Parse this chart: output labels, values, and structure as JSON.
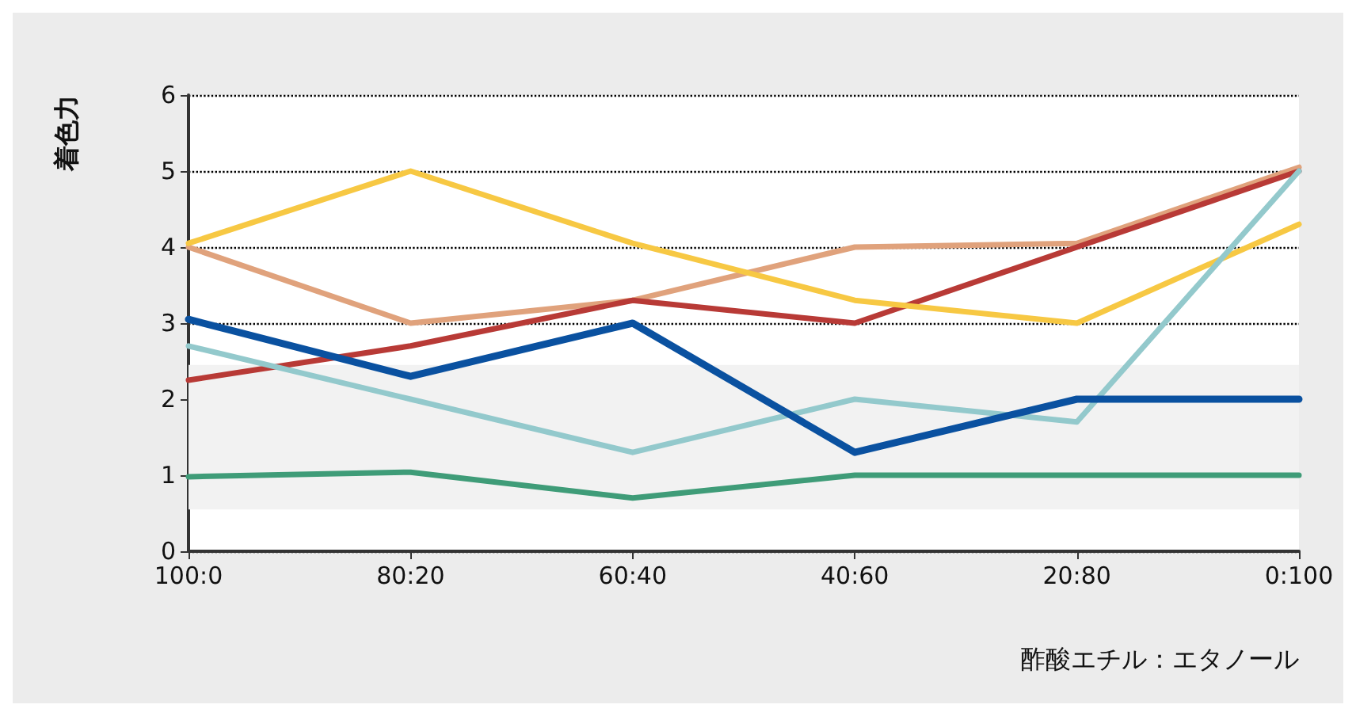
{
  "chart_data": {
    "type": "line",
    "ylabel": "着色力",
    "xlabel": "酢酸エチル：エタノール",
    "categories": [
      "100:0",
      "80:20",
      "60:40",
      "40:60",
      "20:80",
      "0:100"
    ],
    "series": [
      {
        "color": "#e0a27c",
        "values": [
          4.0,
          3.0,
          3.3,
          4.0,
          4.05,
          5.05
        ]
      },
      {
        "color": "#b83a36",
        "values": [
          2.25,
          2.7,
          3.3,
          3.0,
          4.0,
          5.0
        ]
      },
      {
        "color": "#f7c843",
        "values": [
          4.05,
          5.0,
          4.05,
          3.3,
          3.0,
          4.3
        ]
      },
      {
        "color": "#93c9cc",
        "values": [
          2.7,
          2.0,
          1.3,
          2.0,
          1.7,
          5.0
        ]
      },
      {
        "color": "#3f9c78",
        "values": [
          0.98,
          1.04,
          0.7,
          1.0,
          1.0,
          1.0
        ]
      },
      {
        "color": "#0a51a0",
        "values": [
          3.05,
          2.3,
          3.0,
          1.3,
          2.0,
          2.0
        ]
      }
    ],
    "ylim": [
      0,
      6
    ],
    "yticks": [
      0,
      1,
      2,
      3,
      4,
      5,
      6
    ],
    "grid": "y",
    "marker": "none",
    "line_style": "solid",
    "bands": [
      {
        "axis": "y",
        "from": 0.55,
        "to": 2.45,
        "color": "#f2f2f2"
      }
    ]
  }
}
